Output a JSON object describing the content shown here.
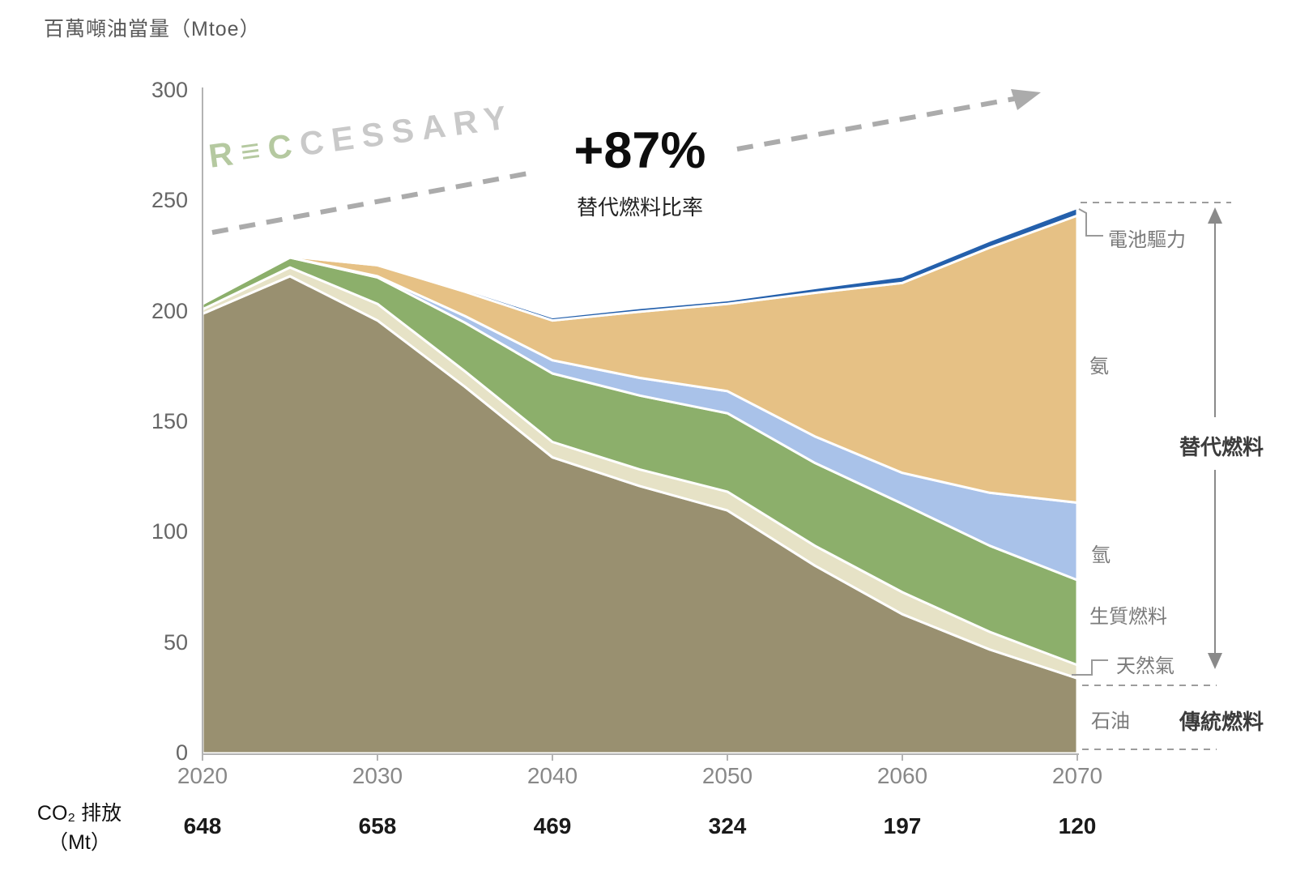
{
  "title": "百萬噸油當量（Mtoe）",
  "watermark": {
    "green_part": "R≡C",
    "gray_part": "CESSARY"
  },
  "annotation": {
    "value": "+87%",
    "label": "替代燃料比率"
  },
  "axis": {
    "y_ticks": [
      0,
      50,
      100,
      150,
      200,
      250,
      300
    ],
    "x_ticks": [
      2020,
      2030,
      2040,
      2050,
      2060,
      2070
    ]
  },
  "co2_row": {
    "label_line1": "CO₂ 排放",
    "label_line2": "（Mt）",
    "values": [
      648,
      658,
      469,
      324,
      197,
      120
    ]
  },
  "legend": {
    "battery": "電池驅力",
    "ammonia": "氨",
    "hydrogen": "氫",
    "biofuel": "生質燃料",
    "gas": "天然氣",
    "oil": "石油",
    "alt_group": "替代燃料",
    "trad_group": "傳統燃料"
  },
  "colors": {
    "oil": "#999070",
    "gas": "#e6e2c6",
    "biofuel": "#8caf6b",
    "hydrogen": "#a9c2e9",
    "ammonia": "#e6c185",
    "battery": "#2460ac",
    "axis": "#b3b3b3",
    "dashed": "#9c9c9c",
    "arrow": "#ababab"
  },
  "chart_data": {
    "type": "area",
    "stacked": true,
    "title": "百萬噸油當量（Mtoe）",
    "ylabel": "百萬噸油當量（Mtoe）",
    "xlabel": "",
    "ylim": [
      0,
      300
    ],
    "xlim": [
      2020,
      2070
    ],
    "grid": false,
    "x": [
      2020,
      2025,
      2030,
      2035,
      2040,
      2045,
      2050,
      2055,
      2060,
      2065,
      2070
    ],
    "series": [
      {
        "name": "石油",
        "color_key": "oil",
        "values": [
          199,
          216,
          196,
          166,
          134,
          121,
          110,
          85,
          63,
          47,
          34
        ]
      },
      {
        "name": "天然氣",
        "color_key": "gas",
        "values": [
          2,
          4,
          7.5,
          7,
          7,
          7.5,
          8.5,
          9,
          10,
          8,
          6
        ]
      },
      {
        "name": "生質燃料",
        "color_key": "biofuel",
        "values": [
          2.5,
          4.5,
          12,
          22,
          31,
          33.5,
          35.5,
          37.5,
          40,
          39,
          38.5
        ]
      },
      {
        "name": "氫",
        "color_key": "hydrogen",
        "values": [
          0,
          0,
          0.5,
          3,
          6,
          8,
          10,
          12,
          14,
          24,
          35
        ]
      },
      {
        "name": "氨",
        "color_key": "ammonia",
        "values": [
          0,
          0.5,
          5,
          11,
          18,
          30,
          39.5,
          65,
          86,
          111,
          130
        ]
      },
      {
        "name": "電池驅力",
        "color_key": "battery",
        "values": [
          0,
          0,
          0.3,
          1.2,
          1.5,
          1.7,
          1.7,
          2.2,
          3,
          3.2,
          3.5
        ]
      }
    ],
    "annotations": {
      "growth_value": "+87%",
      "growth_label": "替代燃料比率",
      "co2_label": "CO₂ 排放（Mt）",
      "co2_values_by_decade": [
        648,
        658,
        469,
        324,
        197,
        120
      ]
    }
  }
}
